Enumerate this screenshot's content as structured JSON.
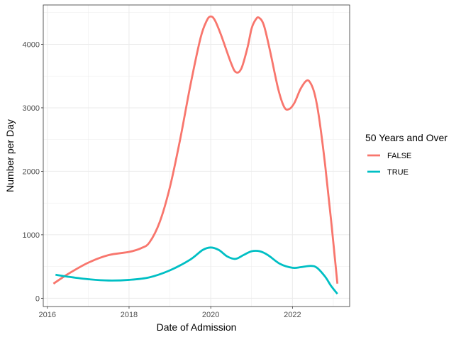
{
  "chart_data": {
    "type": "line",
    "xlabel": "Date of Admission",
    "ylabel": "Number per Day",
    "xlim": [
      2015.9,
      2023.4
    ],
    "ylim": [
      -130,
      4620
    ],
    "x_ticks": [
      2016,
      2018,
      2020,
      2022
    ],
    "y_ticks": [
      0,
      1000,
      2000,
      3000,
      4000
    ],
    "grid": true,
    "legend": {
      "title": "50 Years and Over",
      "placement": "right"
    },
    "series": [
      {
        "name": "FALSE",
        "color": "#F8766D",
        "x": [
          2016.15,
          2016.5,
          2017.0,
          2017.5,
          2018.0,
          2018.3,
          2018.5,
          2018.75,
          2019.0,
          2019.25,
          2019.5,
          2019.75,
          2019.9,
          2020.0,
          2020.1,
          2020.25,
          2020.5,
          2020.62,
          2020.75,
          2020.9,
          2021.0,
          2021.1,
          2021.18,
          2021.3,
          2021.45,
          2021.65,
          2021.8,
          2021.92,
          2022.05,
          2022.2,
          2022.35,
          2022.45,
          2022.55,
          2022.65,
          2022.8,
          2022.95,
          2023.1
        ],
        "y": [
          230,
          380,
          560,
          680,
          730,
          790,
          880,
          1200,
          1750,
          2500,
          3350,
          4100,
          4370,
          4440,
          4380,
          4150,
          3700,
          3560,
          3620,
          3950,
          4250,
          4390,
          4420,
          4300,
          3900,
          3300,
          3010,
          2980,
          3080,
          3300,
          3430,
          3380,
          3200,
          2850,
          2100,
          1200,
          230
        ]
      },
      {
        "name": "TRUE",
        "color": "#00BFC4",
        "x": [
          2016.2,
          2016.5,
          2017.0,
          2017.5,
          2018.0,
          2018.5,
          2019.0,
          2019.5,
          2019.8,
          2020.0,
          2020.2,
          2020.4,
          2020.6,
          2020.8,
          2021.0,
          2021.2,
          2021.4,
          2021.7,
          2022.0,
          2022.2,
          2022.45,
          2022.6,
          2022.8,
          2022.95,
          2023.1
        ],
        "y": [
          370,
          340,
          300,
          280,
          290,
          330,
          440,
          610,
          760,
          800,
          760,
          660,
          620,
          680,
          740,
          740,
          680,
          540,
          480,
          490,
          510,
          480,
          340,
          190,
          70
        ]
      }
    ]
  }
}
